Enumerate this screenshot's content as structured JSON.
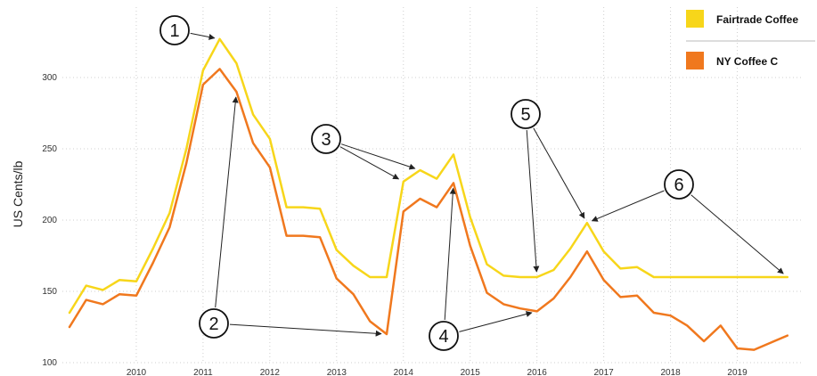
{
  "chart_data": {
    "type": "line",
    "title": "",
    "ylabel": "US Cents/lb",
    "xlabel": "",
    "xlim": [
      2009.0,
      2019.9
    ],
    "ylim": [
      100,
      335
    ],
    "yticks": [
      100,
      150,
      200,
      250,
      300
    ],
    "xticks": [
      2010,
      2011,
      2012,
      2013,
      2014,
      2015,
      2016,
      2017,
      2018,
      2019
    ],
    "grid": "dotted",
    "legend_position": "top-right",
    "series": [
      {
        "name": "Fairtrade Coffee",
        "color": "#F7D61A",
        "x": [
          2009.0,
          2009.25,
          2009.5,
          2009.75,
          2010.0,
          2010.25,
          2010.5,
          2010.75,
          2011.0,
          2011.25,
          2011.5,
          2011.75,
          2012.0,
          2012.25,
          2012.5,
          2012.75,
          2013.0,
          2013.25,
          2013.5,
          2013.75,
          2014.0,
          2014.25,
          2014.5,
          2014.75,
          2015.0,
          2015.25,
          2015.5,
          2015.75,
          2016.0,
          2016.25,
          2016.5,
          2016.75,
          2017.0,
          2017.25,
          2017.5,
          2017.75,
          2018.0,
          2018.25,
          2018.5,
          2018.75,
          2019.0,
          2019.25,
          2019.5,
          2019.75
        ],
        "values": [
          135,
          154,
          151,
          158,
          157,
          180,
          205,
          250,
          305,
          327,
          310,
          274,
          257,
          209,
          209,
          208,
          179,
          168,
          160,
          160,
          227,
          235,
          229,
          246,
          202,
          169,
          161,
          160,
          160,
          165,
          180,
          198,
          178,
          166,
          167,
          160,
          160,
          160,
          160,
          160,
          160,
          160,
          160,
          160
        ]
      },
      {
        "name": "NY Coffee C",
        "color": "#F0781E",
        "x": [
          2009.0,
          2009.25,
          2009.5,
          2009.75,
          2010.0,
          2010.25,
          2010.5,
          2010.75,
          2011.0,
          2011.25,
          2011.5,
          2011.75,
          2012.0,
          2012.25,
          2012.5,
          2012.75,
          2013.0,
          2013.25,
          2013.5,
          2013.75,
          2014.0,
          2014.25,
          2014.5,
          2014.75,
          2015.0,
          2015.25,
          2015.5,
          2015.75,
          2016.0,
          2016.25,
          2016.5,
          2016.75,
          2017.0,
          2017.25,
          2017.5,
          2017.75,
          2018.0,
          2018.25,
          2018.5,
          2018.75,
          2019.0,
          2019.25,
          2019.5,
          2019.75
        ],
        "values": [
          125,
          144,
          141,
          148,
          147,
          170,
          195,
          240,
          295,
          306,
          290,
          254,
          237,
          189,
          189,
          188,
          159,
          148,
          129,
          120,
          206,
          215,
          209,
          226,
          182,
          149,
          141,
          138,
          136,
          145,
          160,
          178,
          158,
          146,
          147,
          135,
          133,
          126,
          115,
          126,
          110,
          109,
          114,
          119
        ]
      }
    ],
    "annotations": [
      {
        "label": "1",
        "targets": [
          {
            "x": 2011.25,
            "y": 327
          }
        ]
      },
      {
        "label": "2",
        "targets": [
          {
            "x": 2011.5,
            "y": 290
          },
          {
            "x": 2013.75,
            "y": 120
          }
        ]
      },
      {
        "label": "3",
        "targets": [
          {
            "x": 2014.0,
            "y": 227
          },
          {
            "x": 2014.25,
            "y": 235
          }
        ]
      },
      {
        "label": "4",
        "targets": [
          {
            "x": 2014.75,
            "y": 226
          },
          {
            "x": 2016.0,
            "y": 136
          }
        ]
      },
      {
        "label": "5",
        "targets": [
          {
            "x": 2016.0,
            "y": 160
          },
          {
            "x": 2016.75,
            "y": 198
          }
        ]
      },
      {
        "label": "6",
        "targets": [
          {
            "x": 2016.75,
            "y": 198
          },
          {
            "x": 2019.75,
            "y": 160
          }
        ]
      }
    ]
  }
}
